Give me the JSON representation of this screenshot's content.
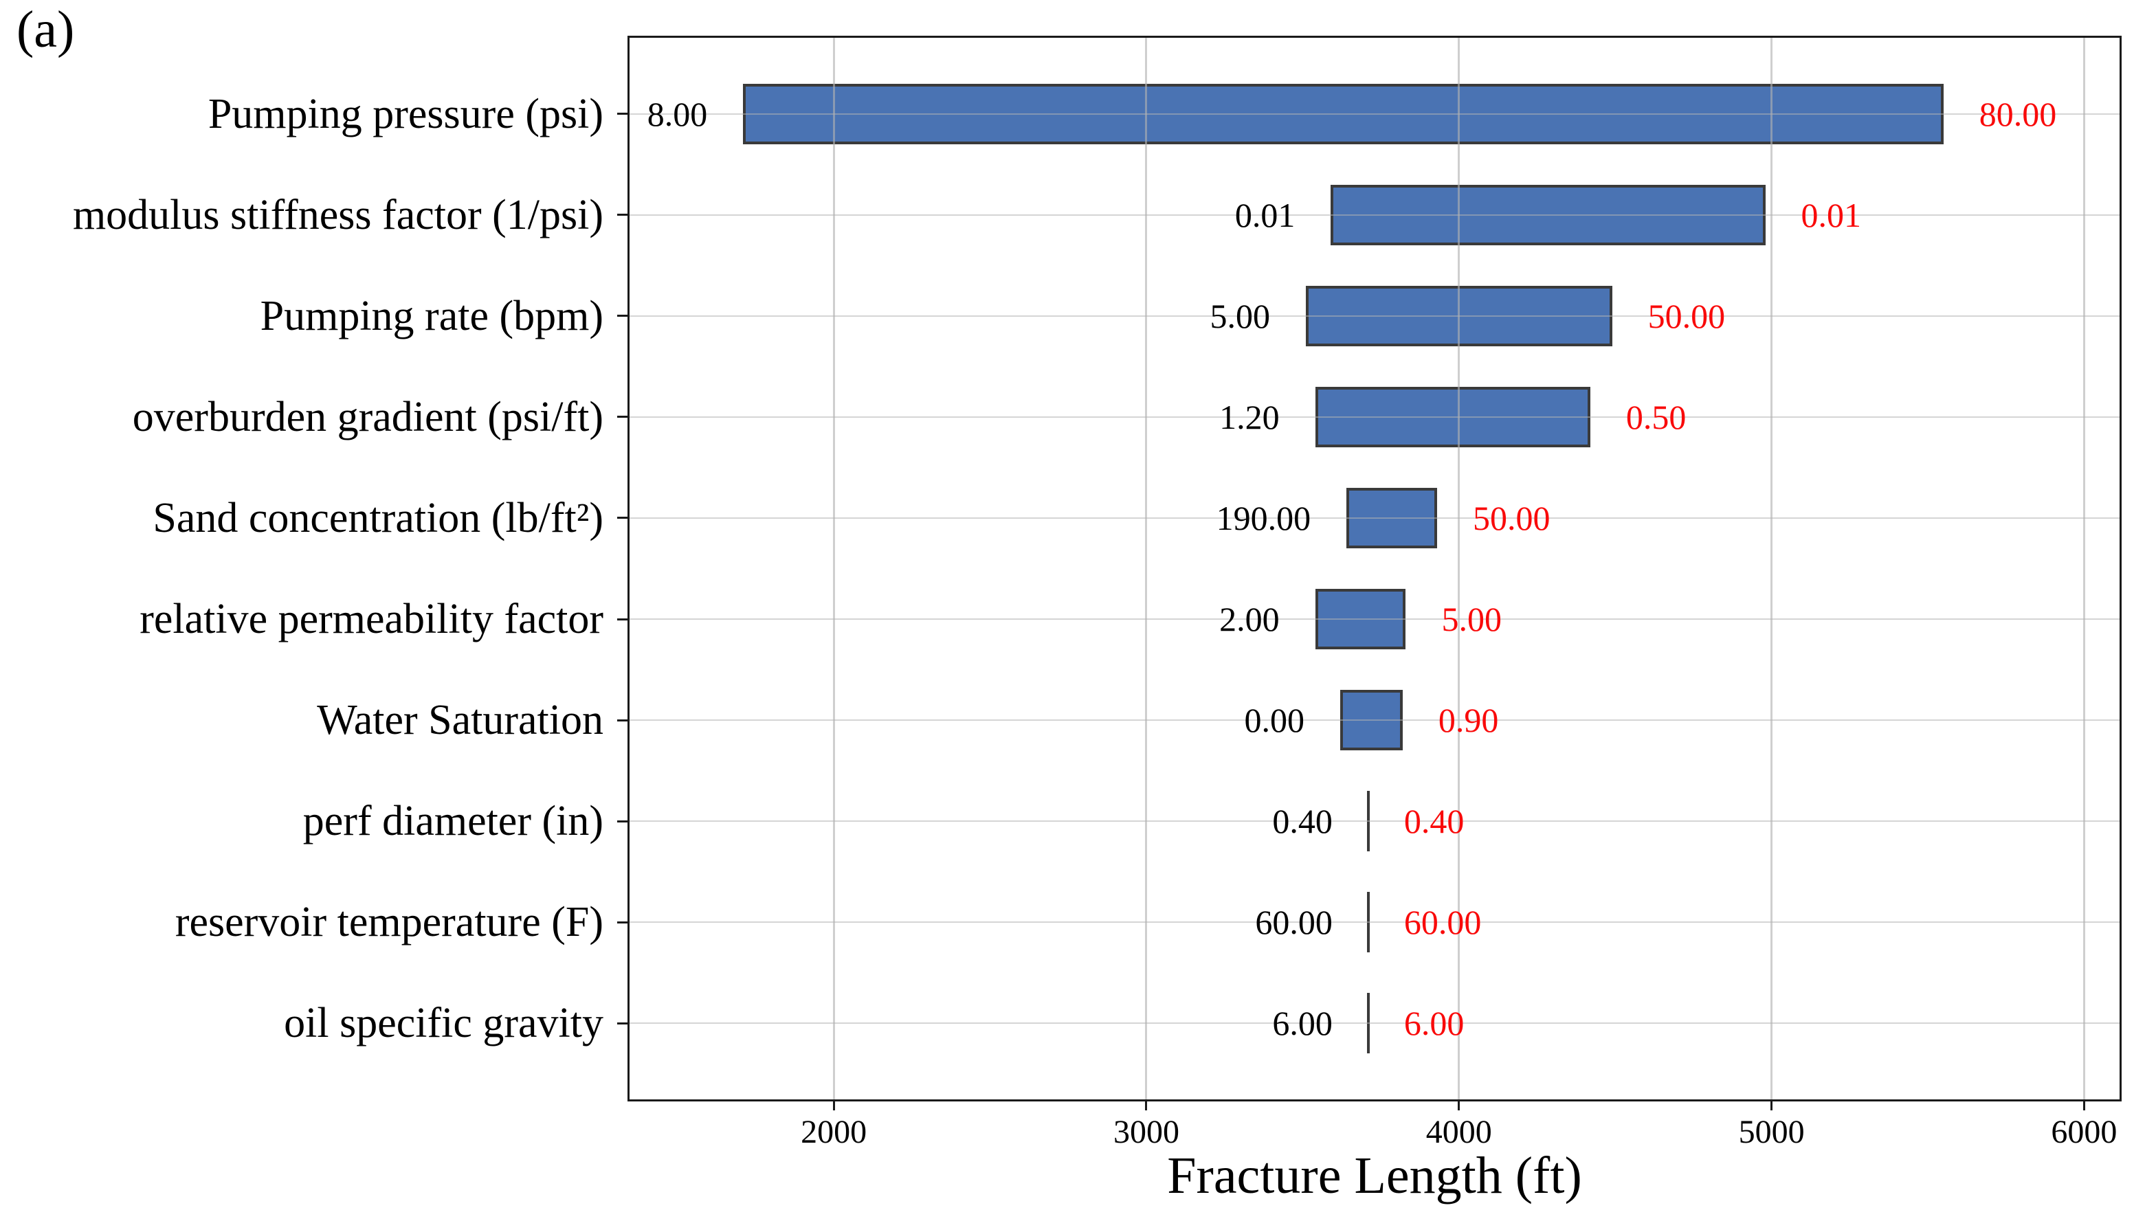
{
  "figure_label": "(a)",
  "colors": {
    "bar_fill": "#4a73b3",
    "bar_edge": "#3a3a3a",
    "low_label_color": "#000000",
    "high_label_color": "#f90a0a",
    "gridline": "#d4d4d4",
    "axis": "#1a1a1a"
  },
  "chart_data": {
    "type": "bar",
    "subtype": "tornado",
    "orientation": "horizontal",
    "title": "",
    "xlabel": "Fracture Length (ft)",
    "ylabel": "",
    "xlim": [
      1340,
      6120
    ],
    "x_ticks": [
      "2000",
      "3000",
      "4000",
      "5000",
      "6000"
    ],
    "x_tick_values": [
      2000,
      3000,
      4000,
      5000,
      6000
    ],
    "base_value": 3710,
    "grid": true,
    "bar_height_fraction": 0.6,
    "categories": [
      "Pumping pressure (psi)",
      "modulus stiffness factor (1/psi)",
      "Pumping rate (bpm)",
      "overburden gradient (psi/ft)",
      "Sand concentration (lb/ft²)",
      "relative permeability factor",
      "Water Saturation",
      "perf diameter (in)",
      "reservoir temperature (F)",
      "oil specific gravity"
    ],
    "rows": [
      {
        "category": "Pumping pressure (psi)",
        "low_label": "8.00",
        "high_label": "80.00",
        "bar_start": 1710,
        "bar_end": 5550
      },
      {
        "category": "modulus stiffness factor (1/psi)",
        "low_label": "0.01",
        "high_label": "0.01",
        "bar_start": 3590,
        "bar_end": 4980
      },
      {
        "category": "Pumping rate (bpm)",
        "low_label": "5.00",
        "high_label": "50.00",
        "bar_start": 3510,
        "bar_end": 4490
      },
      {
        "category": "overburden gradient (psi/ft)",
        "low_label": "1.20",
        "high_label": "0.50",
        "bar_start": 3540,
        "bar_end": 4420
      },
      {
        "category": "Sand concentration (lb/ft²)",
        "low_label": "190.00",
        "high_label": "50.00",
        "bar_start": 3640,
        "bar_end": 3930
      },
      {
        "category": "relative permeability factor",
        "low_label": "2.00",
        "high_label": "5.00",
        "bar_start": 3540,
        "bar_end": 3830
      },
      {
        "category": "Water Saturation",
        "low_label": "0.00",
        "high_label": "0.90",
        "bar_start": 3620,
        "bar_end": 3820
      },
      {
        "category": "perf diameter (in)",
        "low_label": "0.40",
        "high_label": "0.40",
        "bar_start": 3710,
        "bar_end": 3710
      },
      {
        "category": "reservoir temperature (F)",
        "low_label": "60.00",
        "high_label": "60.00",
        "bar_start": 3710,
        "bar_end": 3710
      },
      {
        "category": "oil specific gravity",
        "low_label": "6.00",
        "high_label": "6.00",
        "bar_start": 3710,
        "bar_end": 3710
      }
    ]
  }
}
